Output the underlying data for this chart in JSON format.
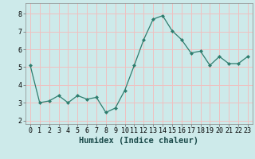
{
  "x": [
    0,
    1,
    2,
    3,
    4,
    5,
    6,
    7,
    8,
    9,
    10,
    11,
    12,
    13,
    14,
    15,
    16,
    17,
    18,
    19,
    20,
    21,
    22,
    23
  ],
  "y": [
    5.1,
    3.0,
    3.1,
    3.4,
    3.0,
    3.4,
    3.2,
    3.3,
    2.45,
    2.7,
    3.7,
    5.1,
    6.55,
    7.7,
    7.9,
    7.05,
    6.55,
    5.8,
    5.9,
    5.1,
    5.6,
    5.2,
    5.2,
    5.6
  ],
  "title": "",
  "xlabel": "Humidex (Indice chaleur)",
  "ylabel": "",
  "ylim": [
    1.8,
    8.6
  ],
  "xlim": [
    -0.5,
    23.5
  ],
  "yticks": [
    2,
    3,
    4,
    5,
    6,
    7,
    8
  ],
  "xticks": [
    0,
    1,
    2,
    3,
    4,
    5,
    6,
    7,
    8,
    9,
    10,
    11,
    12,
    13,
    14,
    15,
    16,
    17,
    18,
    19,
    20,
    21,
    22,
    23
  ],
  "line_color": "#2e7d6e",
  "marker": "D",
  "marker_size": 2.0,
  "bg_color": "#cdeaea",
  "grid_color": "#f0c0c0",
  "axis_bg": "#cdeaea",
  "xlabel_fontsize": 7.5,
  "tick_fontsize": 6.0,
  "linewidth": 0.9
}
